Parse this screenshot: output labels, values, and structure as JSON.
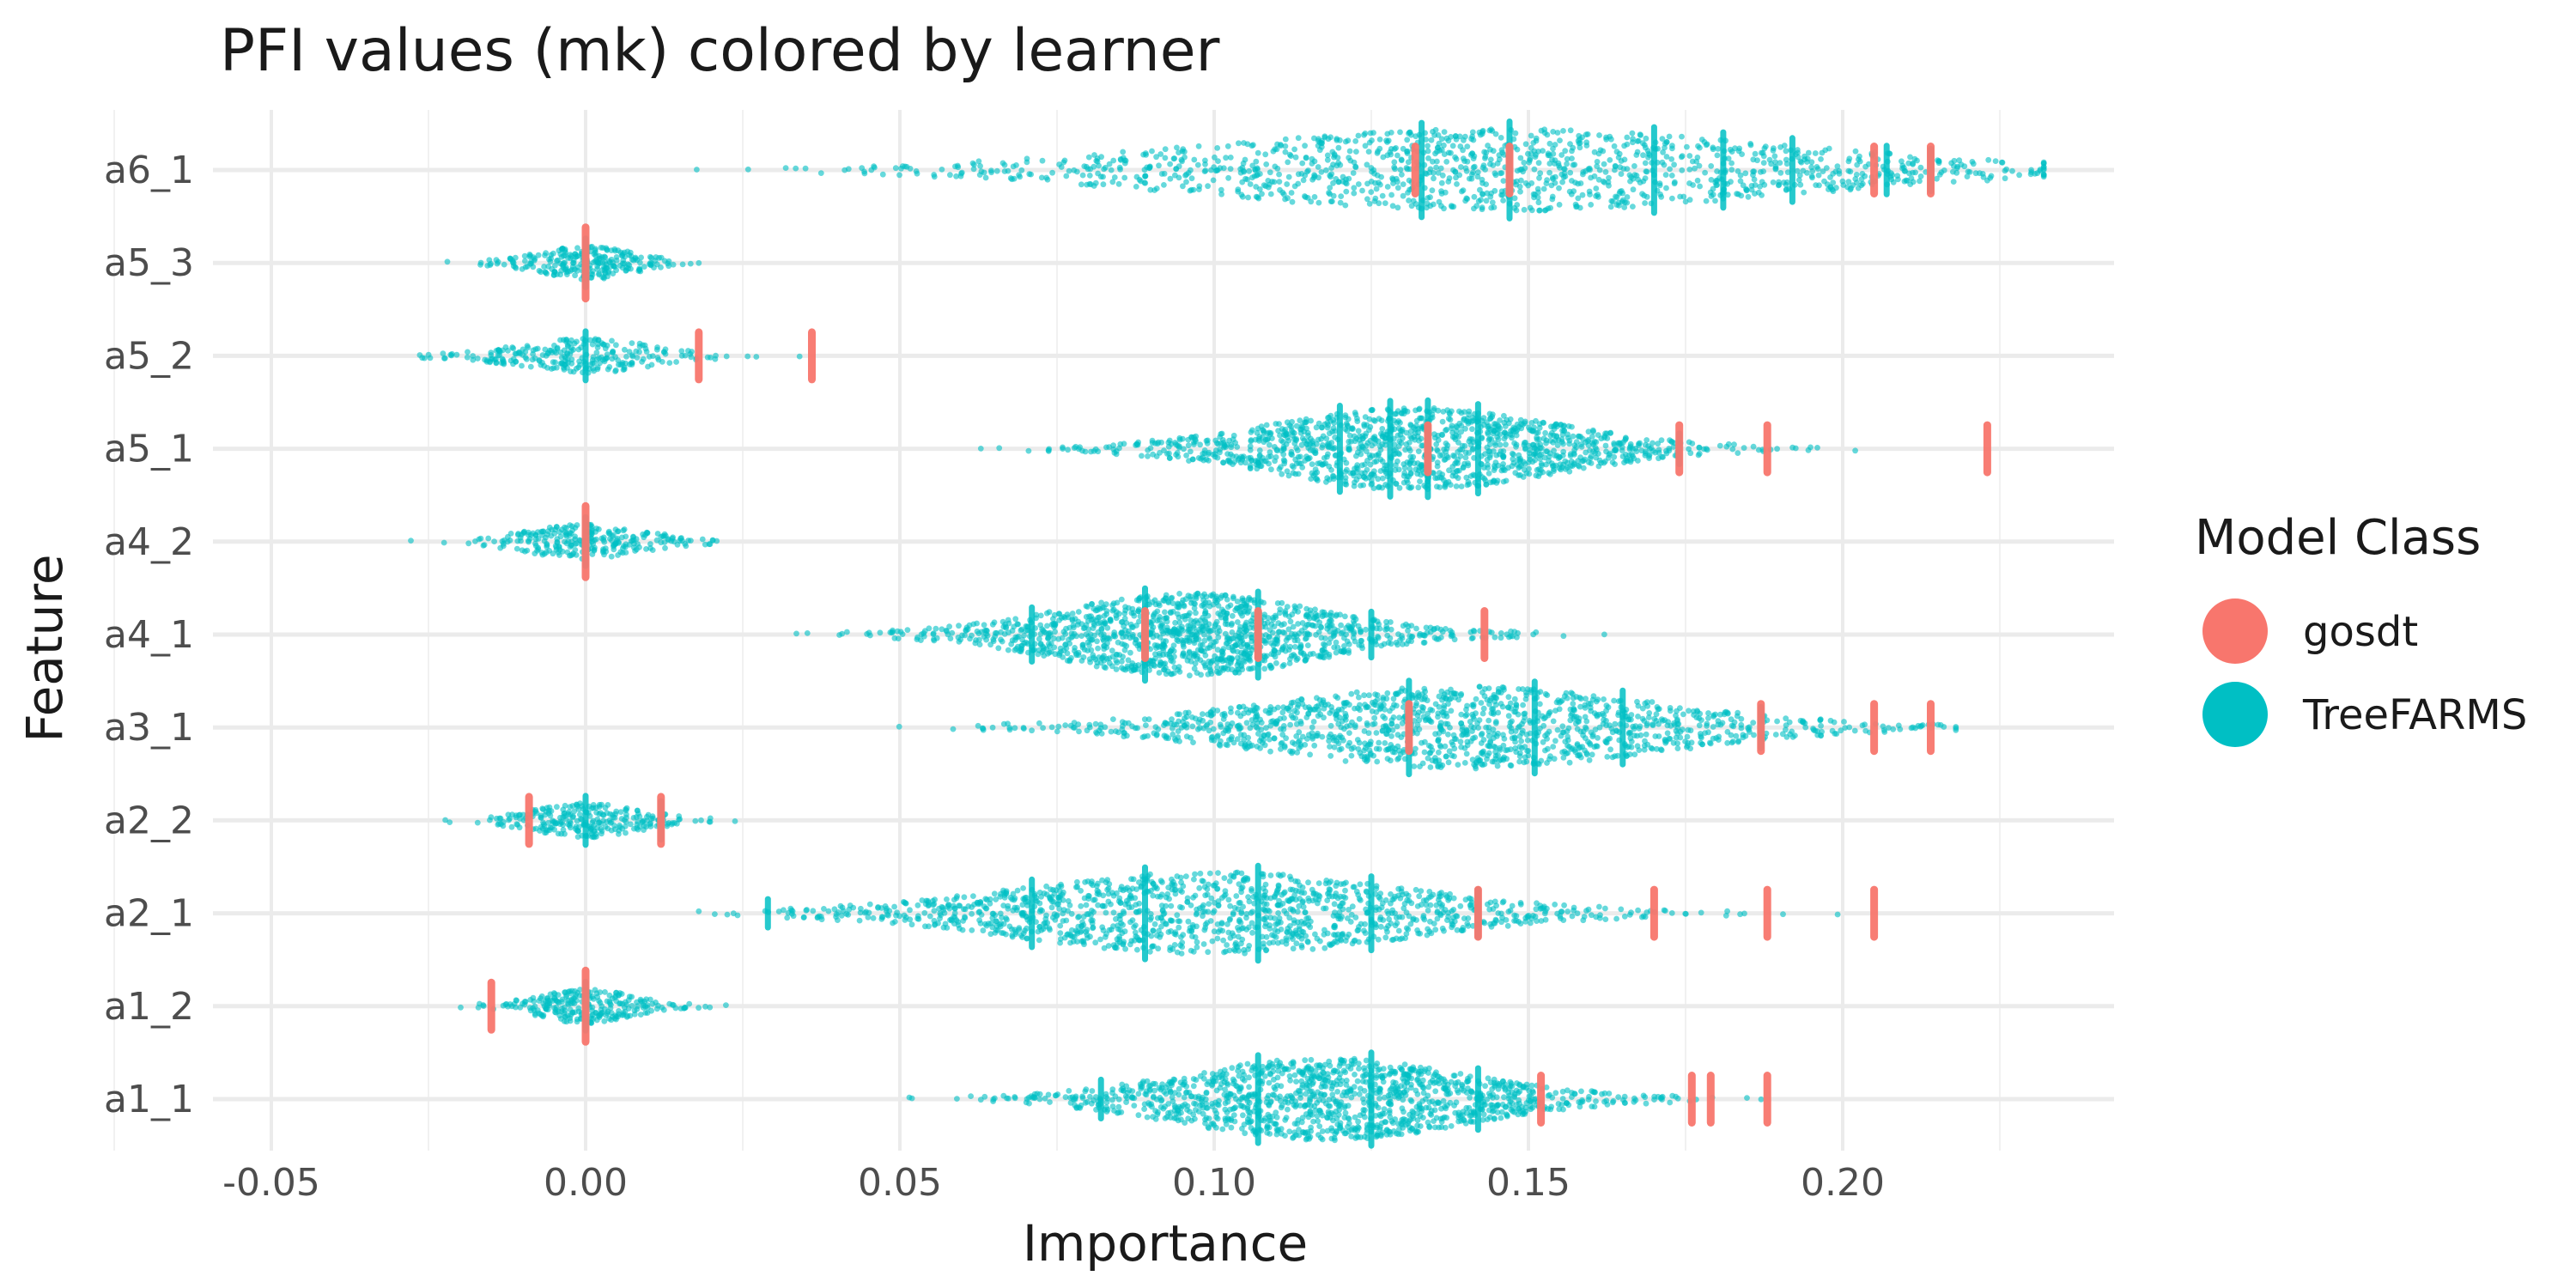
{
  "chart_data": {
    "type": "scatter",
    "subtype": "beeswarm",
    "title": "PFI values (mk) colored by learner",
    "xlabel": "Importance",
    "ylabel": "Feature",
    "xlim": [
      -0.05,
      0.25
    ],
    "x_ticks": [
      -0.05,
      0.0,
      0.05,
      0.1,
      0.15,
      0.2
    ],
    "x_tick_labels": [
      "-0.05",
      "0.00",
      "0.05",
      "0.10",
      "0.15",
      "0.20"
    ],
    "categories": [
      "a6_1",
      "a5_3",
      "a5_2",
      "a5_1",
      "a4_2",
      "a4_1",
      "a3_1",
      "a2_2",
      "a2_1",
      "a1_2",
      "a1_1"
    ],
    "grid": true,
    "legend": {
      "title": "Model Class",
      "position": "right",
      "entries": [
        {
          "label": "gosdt",
          "color": "#F8766D"
        },
        {
          "label": "TreeFARMS",
          "color": "#00BFC4"
        }
      ]
    },
    "series": [
      {
        "name": "TreeFARMS",
        "color": "#00BFC4",
        "distributions": [
          {
            "feature": "a6_1",
            "min": 0.011,
            "max": 0.232,
            "center": 0.145,
            "spread": 0.045,
            "stacks": [
              0.133,
              0.147,
              0.17,
              0.181,
              0.192,
              0.207,
              0.214
            ]
          },
          {
            "feature": "a5_3",
            "min": -0.022,
            "max": 0.018,
            "center": 0.0,
            "spread": 0.007,
            "stacks": [
              0.0
            ]
          },
          {
            "feature": "a5_2",
            "min": -0.045,
            "max": 0.063,
            "center": 0.0,
            "spread": 0.01,
            "stacks": [
              0.0
            ]
          },
          {
            "feature": "a5_1",
            "min": 0.05,
            "max": 0.202,
            "center": 0.132,
            "spread": 0.022,
            "stacks": [
              0.12,
              0.128,
              0.134,
              0.142,
              0.174
            ]
          },
          {
            "feature": "a4_2",
            "min": -0.036,
            "max": 0.026,
            "center": 0.0,
            "spread": 0.009,
            "stacks": [
              0.0
            ]
          },
          {
            "feature": "a4_1",
            "min": 0.01,
            "max": 0.169,
            "center": 0.096,
            "spread": 0.02,
            "stacks": [
              0.071,
              0.089,
              0.107,
              0.125
            ]
          },
          {
            "feature": "a3_1",
            "min": 0.046,
            "max": 0.218,
            "center": 0.14,
            "spread": 0.03,
            "stacks": [
              0.131,
              0.151,
              0.165,
              0.187
            ]
          },
          {
            "feature": "a2_2",
            "min": -0.043,
            "max": 0.03,
            "center": 0.0,
            "spread": 0.008,
            "stacks": [
              0.0,
              0.012
            ]
          },
          {
            "feature": "a2_1",
            "min": 0.018,
            "max": 0.205,
            "center": 0.1,
            "spread": 0.03,
            "stacks": [
              0.029,
              0.071,
              0.089,
              0.107,
              0.125,
              0.142
            ]
          },
          {
            "feature": "a1_2",
            "min": -0.04,
            "max": 0.027,
            "center": 0.0,
            "spread": 0.007,
            "stacks": [
              0.0
            ]
          },
          {
            "feature": "a1_1",
            "min": 0.042,
            "max": 0.198,
            "center": 0.118,
            "spread": 0.022,
            "stacks": [
              0.082,
              0.107,
              0.125,
              0.142
            ]
          }
        ]
      },
      {
        "name": "gosdt",
        "color": "#F8766D",
        "points": [
          {
            "feature": "a6_1",
            "x": 0.132,
            "y": 0.0
          },
          {
            "feature": "a6_1",
            "x": 0.147,
            "y": 0.0
          },
          {
            "feature": "a6_1",
            "x": 0.205,
            "y": 0.0
          },
          {
            "feature": "a6_1",
            "x": 0.214,
            "y": 0.0
          },
          {
            "feature": "a5_3",
            "x": 0.0,
            "y": 0.0
          },
          {
            "feature": "a5_2",
            "x": 0.018,
            "y": 0.0
          },
          {
            "feature": "a5_2",
            "x": 0.036,
            "y": 0.0
          },
          {
            "feature": "a5_1",
            "x": 0.134,
            "y": 0.0
          },
          {
            "feature": "a5_1",
            "x": 0.174,
            "y": 0.0
          },
          {
            "feature": "a5_1",
            "x": 0.188,
            "y": 0.0
          },
          {
            "feature": "a5_1",
            "x": 0.223,
            "y": 0.0
          },
          {
            "feature": "a4_2",
            "x": 0.0,
            "y": 0.0
          },
          {
            "feature": "a4_1",
            "x": 0.089,
            "y": 0.0
          },
          {
            "feature": "a4_1",
            "x": 0.107,
            "y": 0.0
          },
          {
            "feature": "a4_1",
            "x": 0.143,
            "y": 0.0
          },
          {
            "feature": "a3_1",
            "x": 0.131,
            "y": 0.0
          },
          {
            "feature": "a3_1",
            "x": 0.187,
            "y": 0.0
          },
          {
            "feature": "a3_1",
            "x": 0.205,
            "y": 0.0
          },
          {
            "feature": "a3_1",
            "x": 0.214,
            "y": 0.0
          },
          {
            "feature": "a2_2",
            "x": -0.009,
            "y": 0.0
          },
          {
            "feature": "a2_2",
            "x": 0.012,
            "y": 0.0
          },
          {
            "feature": "a2_1",
            "x": 0.142,
            "y": 0.0
          },
          {
            "feature": "a2_1",
            "x": 0.17,
            "y": 0.0
          },
          {
            "feature": "a2_1",
            "x": 0.188,
            "y": 0.0
          },
          {
            "feature": "a2_1",
            "x": 0.205,
            "y": 0.0
          },
          {
            "feature": "a1_2",
            "x": -0.015,
            "y": 0.0
          },
          {
            "feature": "a1_2",
            "x": 0.0,
            "y": 0.0
          },
          {
            "feature": "a1_1",
            "x": 0.152,
            "y": 0.0
          },
          {
            "feature": "a1_1",
            "x": 0.176,
            "y": 0.0
          },
          {
            "feature": "a1_1",
            "x": 0.179,
            "y": 0.0
          },
          {
            "feature": "a1_1",
            "x": 0.188,
            "y": 0.0
          }
        ]
      }
    ]
  }
}
